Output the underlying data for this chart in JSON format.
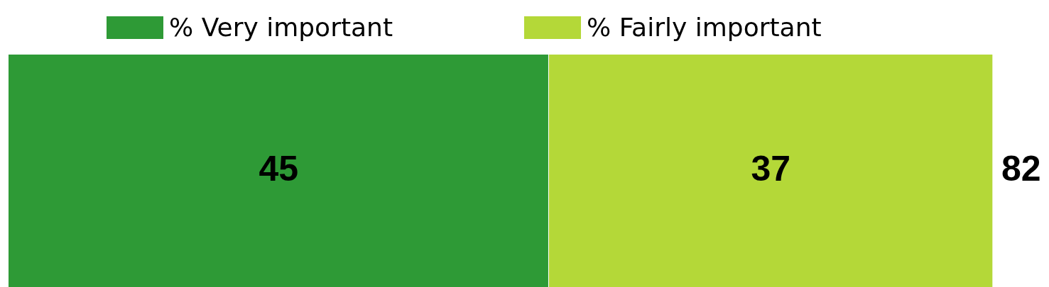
{
  "chart_data": {
    "type": "bar",
    "orientation": "horizontal",
    "stacked": true,
    "categories": [
      null
    ],
    "series": [
      {
        "name": "% Very important",
        "color": "#2e9a36",
        "values": [
          45
        ]
      },
      {
        "name": "% Fairly important",
        "color": "#b4d838",
        "values": [
          37
        ]
      }
    ],
    "data_labels": true,
    "totals": [
      "82"
    ],
    "legend": "top",
    "tick_labels": false
  }
}
